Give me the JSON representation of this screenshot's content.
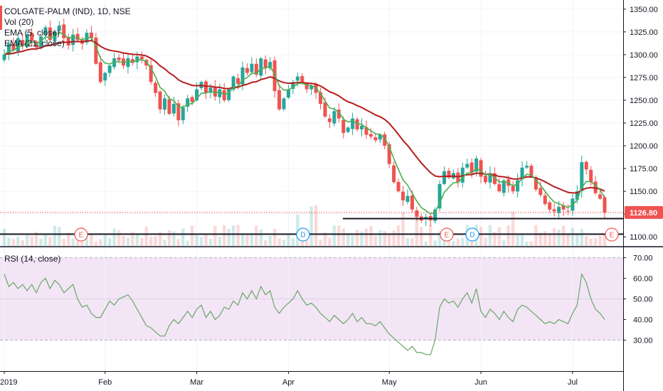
{
  "symbol": {
    "title": "COLGATE-PALM (IND), 1D, NSE",
    "vol_label": "Vol (20)",
    "ema5_label": "EMA (5, close)",
    "ema21_label": "EMA (21, close)",
    "rsi_label": "RSI (14, close)"
  },
  "colors": {
    "up": "#26a69a",
    "down": "#ef5350",
    "ema_fast": "#4caf50",
    "ema_slow": "#b71c1c",
    "rsi_line": "#66a866",
    "rsi_band": "#f3e5f5",
    "price_tag": "#ef5350"
  },
  "events": [
    {
      "letter": "E",
      "type": "earnings"
    },
    {
      "letter": "D",
      "type": "dividend"
    },
    {
      "letter": "E",
      "type": "earnings"
    },
    {
      "letter": "D",
      "type": "dividend"
    },
    {
      "letter": "E",
      "type": "earnings"
    }
  ],
  "chart_data": {
    "type": "candlestick",
    "price_axis": {
      "ylim": [
        1090,
        1360
      ],
      "ticks": [
        1350.0,
        1325.0,
        1300.0,
        1275.0,
        1250.0,
        1225.0,
        1200.0,
        1175.0,
        1150.0,
        1125.0,
        1100.0
      ],
      "tick_labels": [
        "1350.00",
        "1325.00",
        "1300.00",
        "1275.00",
        "1250.00",
        "1225.00",
        "1200.00",
        "1175.00",
        "1150.00",
        "1125.00",
        "1100.00"
      ]
    },
    "last_price": 1126.8,
    "last_price_label": "1126.80",
    "support_lines": [
      1120,
      1103
    ],
    "x_axis": {
      "labels": [
        "2019",
        "Feb",
        "Mar",
        "Apr",
        "May",
        "Jun",
        "Jul"
      ],
      "label_index": [
        0,
        22,
        42,
        62,
        84,
        104,
        124
      ]
    },
    "close": [
      1300,
      1312,
      1305,
      1318,
      1310,
      1322,
      1315,
      1308,
      1320,
      1330,
      1316,
      1325,
      1332,
      1318,
      1310,
      1322,
      1316,
      1312,
      1324,
      1318,
      1290,
      1270,
      1280,
      1288,
      1296,
      1294,
      1288,
      1296,
      1291,
      1298,
      1295,
      1288,
      1270,
      1258,
      1240,
      1252,
      1235,
      1246,
      1228,
      1242,
      1252,
      1248,
      1262,
      1270,
      1258,
      1264,
      1254,
      1262,
      1250,
      1262,
      1276,
      1268,
      1286,
      1280,
      1290,
      1278,
      1296,
      1286,
      1292,
      1260,
      1240,
      1252,
      1262,
      1270,
      1276,
      1270,
      1262,
      1266,
      1258,
      1246,
      1232,
      1226,
      1238,
      1230,
      1214,
      1220,
      1230,
      1218,
      1222,
      1212,
      1210,
      1206,
      1212,
      1200,
      1180,
      1160,
      1150,
      1140,
      1145,
      1130,
      1122,
      1118,
      1122,
      1118,
      1130,
      1158,
      1172,
      1165,
      1170,
      1160,
      1176,
      1180,
      1170,
      1186,
      1166,
      1160,
      1170,
      1158,
      1150,
      1162,
      1156,
      1150,
      1162,
      1176,
      1178,
      1166,
      1152,
      1146,
      1136,
      1130,
      1128,
      1133,
      1130,
      1128,
      1142,
      1150,
      1182,
      1174,
      1160,
      1148,
      1142,
      1126.8
    ],
    "volume_units": "relative",
    "rsi": {
      "ylim": [
        15,
        75
      ],
      "ticks": [
        70.0,
        60.0,
        50.0,
        40.0,
        30.0
      ],
      "tick_labels": [
        "70.00",
        "60.00",
        "50.00",
        "40.00",
        "30.00"
      ],
      "overbought": 70,
      "oversold": 30,
      "values": [
        62,
        56,
        58,
        55,
        57,
        54,
        57,
        53,
        58,
        60,
        55,
        59,
        57,
        53,
        55,
        57,
        50,
        46,
        47,
        43,
        41,
        41,
        45,
        49,
        47,
        50,
        51,
        52,
        49,
        45,
        41,
        37,
        36,
        34,
        32,
        32,
        37,
        40,
        38,
        41,
        44,
        41,
        45,
        47,
        41,
        44,
        40,
        42,
        46,
        45,
        49,
        47,
        53,
        50,
        54,
        50,
        56,
        52,
        54,
        46,
        43,
        46,
        48,
        50,
        54,
        50,
        47,
        48,
        46,
        43,
        41,
        39,
        42,
        40,
        38,
        40,
        43,
        39,
        41,
        38,
        38,
        37,
        39,
        36,
        33,
        31,
        29,
        27,
        25,
        27,
        24,
        24,
        23,
        23,
        30,
        46,
        50,
        48,
        49,
        46,
        50,
        53,
        48,
        55,
        44,
        41,
        45,
        43,
        40,
        44,
        41,
        39,
        45,
        47,
        46,
        44,
        42,
        40,
        38,
        39,
        38,
        40,
        39,
        38,
        43,
        47,
        62,
        58,
        50,
        45,
        43,
        40
      ]
    }
  }
}
